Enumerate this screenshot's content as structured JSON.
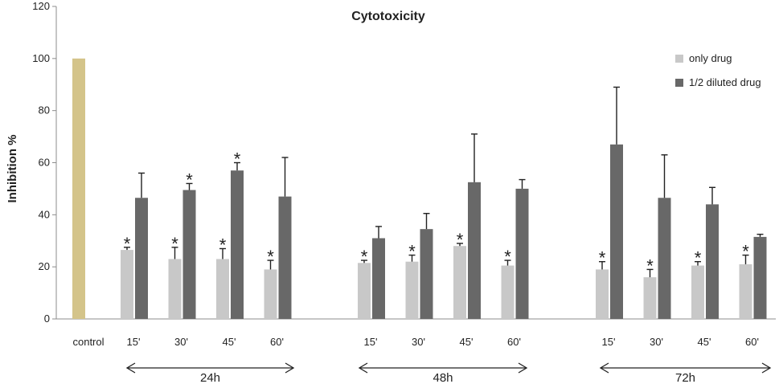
{
  "chart_data": {
    "type": "bar",
    "title": "Cytotoxicity",
    "xlabel": "",
    "ylabel": "Inhibition %",
    "ylim": [
      0,
      120
    ],
    "yticks": [
      0,
      20,
      40,
      60,
      80,
      100,
      120
    ],
    "grid": false,
    "legend_position": "top-right",
    "control": {
      "label": "control",
      "value": 100,
      "color": "#d4c48a"
    },
    "series": [
      {
        "name": "only drug",
        "color": "#c8c8c8"
      },
      {
        "name": "1/2 diluted drug",
        "color": "#686868"
      }
    ],
    "groups": [
      {
        "label": "24h",
        "categories": [
          "15'",
          "30'",
          "45'",
          "60'"
        ],
        "only_drug": [
          26.5,
          23,
          23,
          19
        ],
        "only_drug_err": [
          1,
          4.5,
          4,
          3.5
        ],
        "only_drug_sig": [
          true,
          true,
          true,
          true
        ],
        "diluted_drug": [
          46.5,
          49.5,
          57,
          47
        ],
        "diluted_drug_err": [
          9.5,
          2.5,
          3,
          15
        ],
        "diluted_drug_sig": [
          false,
          true,
          true,
          false
        ]
      },
      {
        "label": "48h",
        "categories": [
          "15'",
          "30'",
          "45'",
          "60'"
        ],
        "only_drug": [
          21.5,
          22,
          28,
          20.5
        ],
        "only_drug_err": [
          1,
          2.5,
          1,
          2
        ],
        "only_drug_sig": [
          true,
          true,
          true,
          true
        ],
        "diluted_drug": [
          31,
          34.5,
          52.5,
          50
        ],
        "diluted_drug_err": [
          4.5,
          6,
          18.5,
          3.5
        ],
        "diluted_drug_sig": [
          false,
          false,
          false,
          false
        ]
      },
      {
        "label": "72h",
        "categories": [
          "15'",
          "30'",
          "45'",
          "60'"
        ],
        "only_drug": [
          19,
          16,
          20.5,
          21
        ],
        "only_drug_err": [
          3,
          3,
          1.5,
          3.5
        ],
        "only_drug_sig": [
          true,
          true,
          true,
          true
        ],
        "diluted_drug": [
          67,
          46.5,
          44,
          31.5
        ],
        "diluted_drug_err": [
          22,
          16.5,
          6.5,
          1
        ],
        "diluted_drug_sig": [
          false,
          false,
          false,
          false
        ]
      }
    ],
    "significance_marker": "*"
  }
}
